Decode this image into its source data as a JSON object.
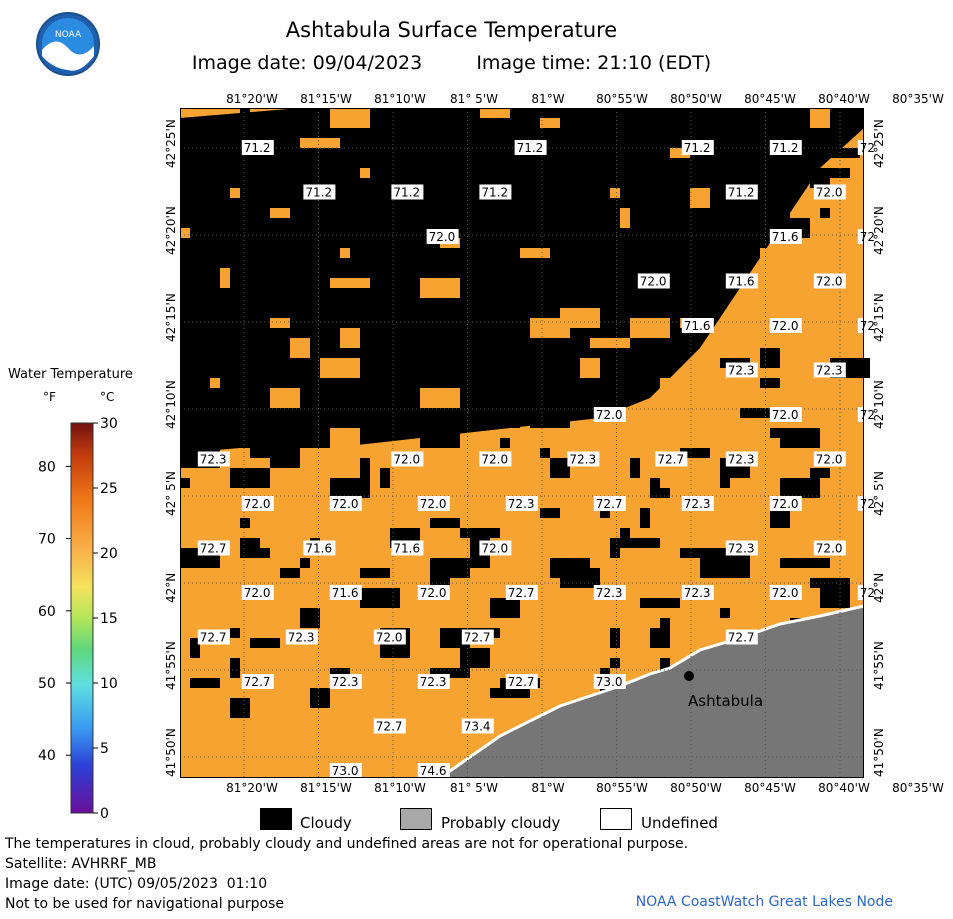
{
  "header": {
    "title": "Ashtabula Surface Temperature",
    "image_date": "Image date: 09/04/2023",
    "image_time": "Image time: 21:10 (EDT)"
  },
  "logo": {
    "text": "NOAA",
    "icon": "noaa-logo"
  },
  "legend": {
    "title": "Water Temperature",
    "unit_f": "°F",
    "unit_c": "°C",
    "f_ticks": [
      "80",
      "70",
      "60",
      "50",
      "40"
    ],
    "f_values": [
      80,
      70,
      60,
      50,
      40
    ],
    "c_ticks": [
      "30",
      "25",
      "20",
      "15",
      "10",
      "5",
      "0"
    ],
    "c_values": [
      30,
      25,
      20,
      15,
      10,
      5,
      0
    ],
    "c_range": [
      0,
      30
    ]
  },
  "axes": {
    "lon_labels": [
      "81°20'W",
      "81°15'W",
      "81°10'W",
      "81° 5'W",
      "81°W",
      "80°55'W",
      "80°50'W",
      "80°45'W",
      "80°40'W",
      "80°35'W"
    ],
    "lat_labels": [
      "42°25'N",
      "42°20'N",
      "42°15'N",
      "42°10'N",
      "42° 5'N",
      "42°N",
      "41°55'N",
      "41°50'N"
    ]
  },
  "map": {
    "location_label": "Ashtabula",
    "colors": {
      "water": "#f7a331",
      "cloud": "#000000",
      "land": "#767676",
      "coast": "#ffffff"
    },
    "temps": [
      {
        "v": "71.2",
        "r": 0,
        "c": 0.6
      },
      {
        "v": "71.2",
        "r": 0,
        "c": 3.7
      },
      {
        "v": "71.2",
        "r": 0,
        "c": 5.6
      },
      {
        "v": "71.2",
        "r": 0,
        "c": 6.6
      },
      {
        "v": "72",
        "r": 0,
        "c": 7.6
      },
      {
        "v": "71.2",
        "r": 1,
        "c": 1.3
      },
      {
        "v": "71.2",
        "r": 1,
        "c": 2.3
      },
      {
        "v": "71.2",
        "r": 1,
        "c": 3.3
      },
      {
        "v": "71.2",
        "r": 1,
        "c": 6.1
      },
      {
        "v": "72.0",
        "r": 1,
        "c": 7.1
      },
      {
        "v": "72.0",
        "r": 2,
        "c": 2.7
      },
      {
        "v": "71.6",
        "r": 2,
        "c": 6.6
      },
      {
        "v": "72",
        "r": 2,
        "c": 7.6
      },
      {
        "v": "72.0",
        "r": 3,
        "c": 5.1
      },
      {
        "v": "71.6",
        "r": 3,
        "c": 6.1
      },
      {
        "v": "72.0",
        "r": 3,
        "c": 7.1
      },
      {
        "v": "71.6",
        "r": 4,
        "c": 5.6
      },
      {
        "v": "72.0",
        "r": 4,
        "c": 6.6
      },
      {
        "v": "72",
        "r": 4,
        "c": 7.6
      },
      {
        "v": "72.3",
        "r": 5,
        "c": 6.1
      },
      {
        "v": "72.3",
        "r": 5,
        "c": 7.1
      },
      {
        "v": "72.0",
        "r": 6,
        "c": 4.6
      },
      {
        "v": "72.0",
        "r": 6,
        "c": 6.6
      },
      {
        "v": "72",
        "r": 6,
        "c": 7.6
      },
      {
        "v": "72.3",
        "r": 7,
        "c": 0.1
      },
      {
        "v": "72.0",
        "r": 7,
        "c": 2.3
      },
      {
        "v": "72.0",
        "r": 7,
        "c": 3.3
      },
      {
        "v": "72.3",
        "r": 7,
        "c": 4.3
      },
      {
        "v": "72.7",
        "r": 7,
        "c": 5.3
      },
      {
        "v": "72.3",
        "r": 7,
        "c": 6.1
      },
      {
        "v": "72.0",
        "r": 7,
        "c": 7.1
      },
      {
        "v": "72.0",
        "r": 8,
        "c": 0.6
      },
      {
        "v": "72.0",
        "r": 8,
        "c": 1.6
      },
      {
        "v": "72.0",
        "r": 8,
        "c": 2.6
      },
      {
        "v": "72.3",
        "r": 8,
        "c": 3.6
      },
      {
        "v": "72.7",
        "r": 8,
        "c": 4.6
      },
      {
        "v": "72.3",
        "r": 8,
        "c": 5.6
      },
      {
        "v": "72.0",
        "r": 8,
        "c": 6.6
      },
      {
        "v": "72",
        "r": 8,
        "c": 7.6
      },
      {
        "v": "72.7",
        "r": 9,
        "c": 0.1
      },
      {
        "v": "71.6",
        "r": 9,
        "c": 1.3
      },
      {
        "v": "71.6",
        "r": 9,
        "c": 2.3
      },
      {
        "v": "72.0",
        "r": 9,
        "c": 3.3
      },
      {
        "v": "72.3",
        "r": 9,
        "c": 6.1
      },
      {
        "v": "72.0",
        "r": 9,
        "c": 7.1
      },
      {
        "v": "72.0",
        "r": 10,
        "c": 0.6
      },
      {
        "v": "71.6",
        "r": 10,
        "c": 1.6
      },
      {
        "v": "72.0",
        "r": 10,
        "c": 2.6
      },
      {
        "v": "72.7",
        "r": 10,
        "c": 3.6
      },
      {
        "v": "72.3",
        "r": 10,
        "c": 4.6
      },
      {
        "v": "72.3",
        "r": 10,
        "c": 5.6
      },
      {
        "v": "72.0",
        "r": 10,
        "c": 6.6
      },
      {
        "v": "72",
        "r": 10,
        "c": 7.6
      },
      {
        "v": "72.7",
        "r": 11,
        "c": 0.1
      },
      {
        "v": "72.3",
        "r": 11,
        "c": 1.1
      },
      {
        "v": "72.0",
        "r": 11,
        "c": 2.1
      },
      {
        "v": "72.7",
        "r": 11,
        "c": 3.1
      },
      {
        "v": "72.7",
        "r": 11,
        "c": 6.1
      },
      {
        "v": "72.7",
        "r": 12,
        "c": 0.6
      },
      {
        "v": "72.3",
        "r": 12,
        "c": 1.6
      },
      {
        "v": "72.3",
        "r": 12,
        "c": 2.6
      },
      {
        "v": "72.7",
        "r": 12,
        "c": 3.6
      },
      {
        "v": "73.0",
        "r": 12,
        "c": 4.6
      },
      {
        "v": "72.7",
        "r": 13,
        "c": 2.1
      },
      {
        "v": "73.4",
        "r": 13,
        "c": 3.1
      },
      {
        "v": "73.0",
        "r": 14,
        "c": 1.6
      },
      {
        "v": "74.6",
        "r": 14,
        "c": 2.6
      }
    ]
  },
  "key": {
    "cloudy": "Cloudy",
    "probably_cloudy": "Probably cloudy",
    "undefined": "Undefined"
  },
  "footer": {
    "note": "The temperatures in cloud, probably cloudy and undefined areas are not for operational purpose.",
    "satellite": "Satellite: AVHRRF_MB",
    "utc_date": "Image date: (UTC) 09/05/2023  01:10",
    "nav": "Not to be used for navigational purpose",
    "node": "NOAA CoastWatch Great Lakes Node"
  }
}
